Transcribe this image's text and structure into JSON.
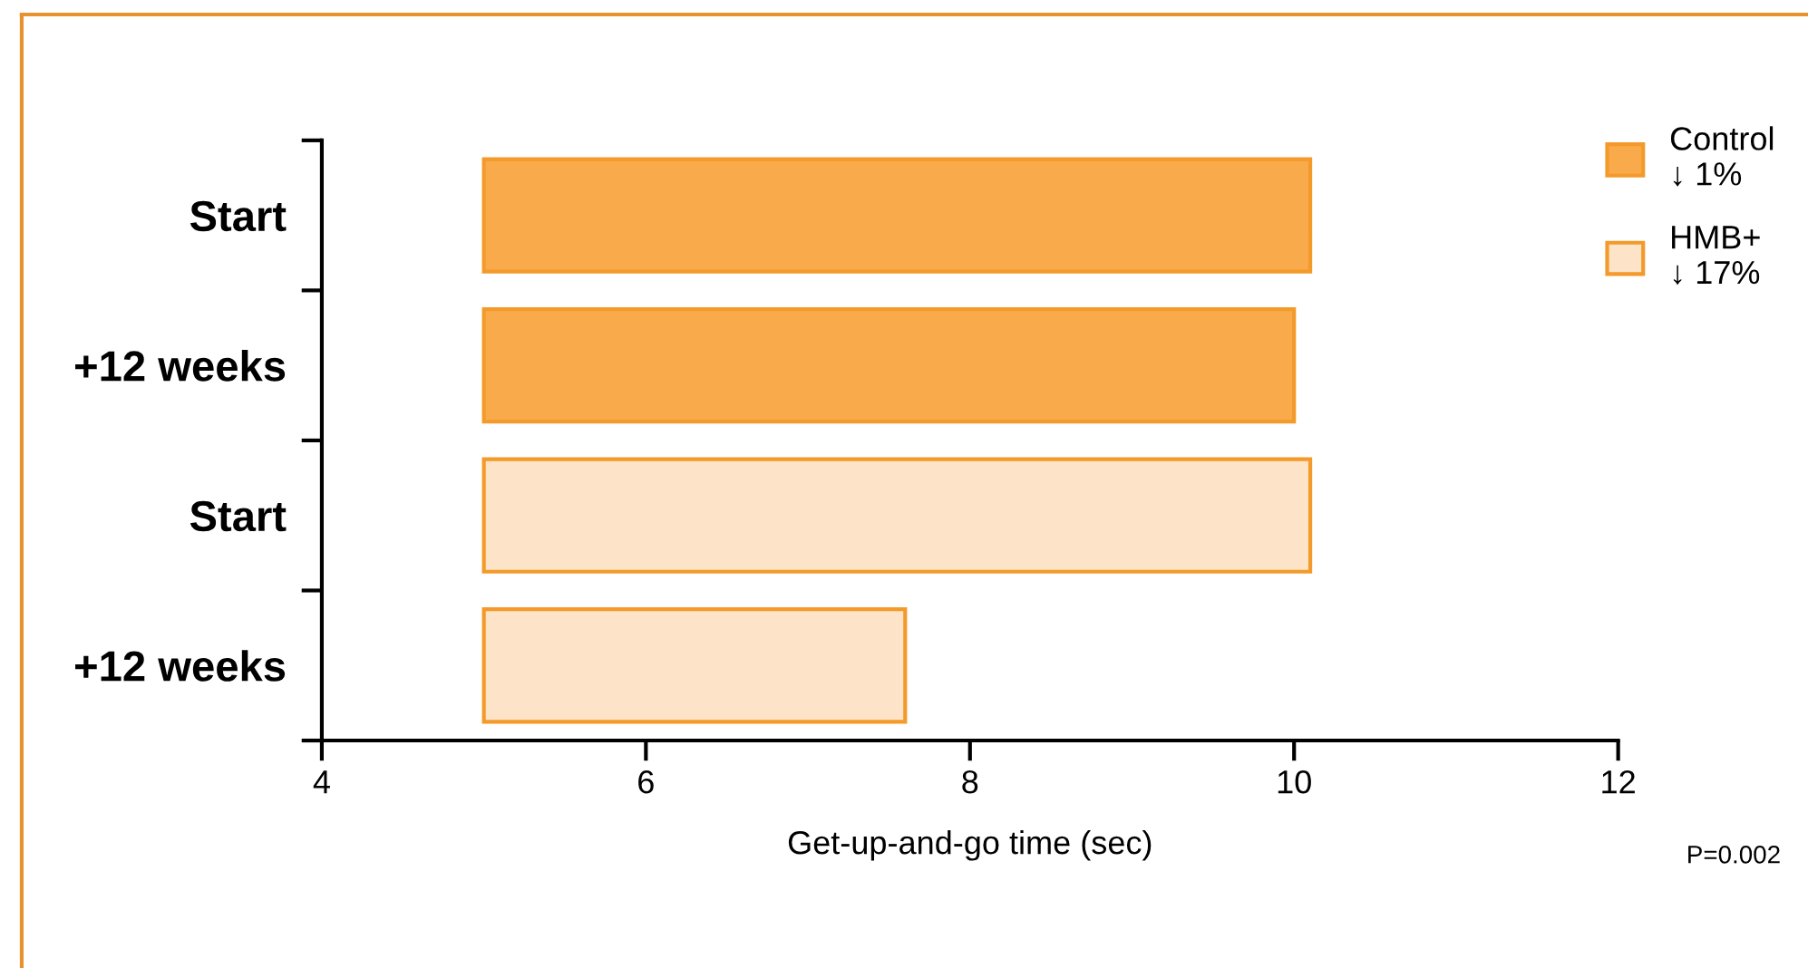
{
  "chart_data": {
    "type": "bar",
    "orientation": "horizontal",
    "xlabel": "Get-up-and-go time (sec)",
    "categories": [
      "Start",
      "+12 weeks",
      "Start",
      "+12 weeks"
    ],
    "series": [
      {
        "name": "Control\n↓ 1%",
        "color": "#f9aa4b",
        "base": [
          5,
          5,
          null,
          null
        ],
        "values": [
          5.1,
          5.0,
          null,
          null
        ]
      },
      {
        "name": "HMB+\n↓ 17%",
        "color": "#fde3c7",
        "base": [
          null,
          null,
          5,
          5
        ],
        "values": [
          null,
          null,
          5.1,
          2.6
        ]
      }
    ],
    "xlim": [
      4,
      12
    ],
    "xticks": [
      4,
      6,
      8,
      10,
      12
    ],
    "grid": false,
    "legend": "top right",
    "annotations": [
      "P=0.002"
    ]
  }
}
